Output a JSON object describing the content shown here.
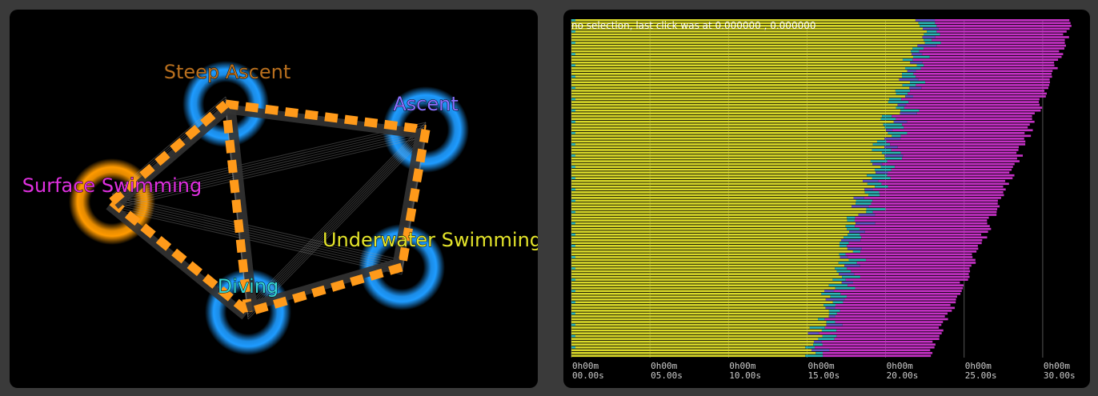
{
  "colors": {
    "background": "#3a3a3a",
    "panel": "#000000",
    "node_glow": "#1e9bff",
    "node_glow_active": "#ff9a00",
    "edge_orange": "#ff9a1a",
    "edge_dark": "#333333",
    "bar_yellow": "#d9d92a",
    "bar_magenta": "#c531c5",
    "bar_cyan": "#2fb8b8",
    "bar_purple": "#6a5acd"
  },
  "graph": {
    "nodes": [
      {
        "id": "steep",
        "label": "Steep Ascent",
        "color": "#b86f1e",
        "glow": "node_glow"
      },
      {
        "id": "ascent",
        "label": "Ascent",
        "color": "#8a70ff",
        "glow": "node_glow"
      },
      {
        "id": "surface",
        "label": "Surface Swimming",
        "color": "#e030e0",
        "glow": "node_glow_active"
      },
      {
        "id": "underwater",
        "label": "Underwater Swimming",
        "color": "#e4e42a",
        "glow": "node_glow"
      },
      {
        "id": "diving",
        "label": "Diving",
        "color": "#35d6d6",
        "glow": "node_glow"
      }
    ],
    "main_edges": [
      [
        "surface",
        "diving"
      ],
      [
        "diving",
        "steep"
      ],
      [
        "steep",
        "ascent"
      ],
      [
        "ascent",
        "underwater"
      ],
      [
        "underwater",
        "diving"
      ],
      [
        "surface",
        "steep"
      ]
    ],
    "thin_edges": [
      [
        "surface",
        "ascent"
      ],
      [
        "surface",
        "underwater"
      ],
      [
        "steep",
        "diving"
      ],
      [
        "ascent",
        "diving"
      ],
      [
        "surface",
        "steep"
      ],
      [
        "ascent",
        "underwater"
      ]
    ]
  },
  "timeline": {
    "status": "no selection, last click was at 0.000000 , 0.000000",
    "x_ticks": [
      {
        "line1": "0h00m",
        "line2": "00.00s",
        "value": 0
      },
      {
        "line1": "0h00m",
        "line2": "05.00s",
        "value": 5
      },
      {
        "line1": "0h00m",
        "line2": "10.00s",
        "value": 10
      },
      {
        "line1": "0h00m",
        "line2": "15.00s",
        "value": 15
      },
      {
        "line1": "0h00m",
        "line2": "20.00s",
        "value": 20
      },
      {
        "line1": "0h00m",
        "line2": "25.00s",
        "value": 25
      },
      {
        "line1": "0h00m",
        "line2": "30.00s",
        "value": 30
      }
    ],
    "x_range_seconds": [
      0,
      32.5
    ],
    "row_count": 120,
    "segments_per_row": [
      "yellow",
      "cyan",
      "magenta"
    ]
  }
}
